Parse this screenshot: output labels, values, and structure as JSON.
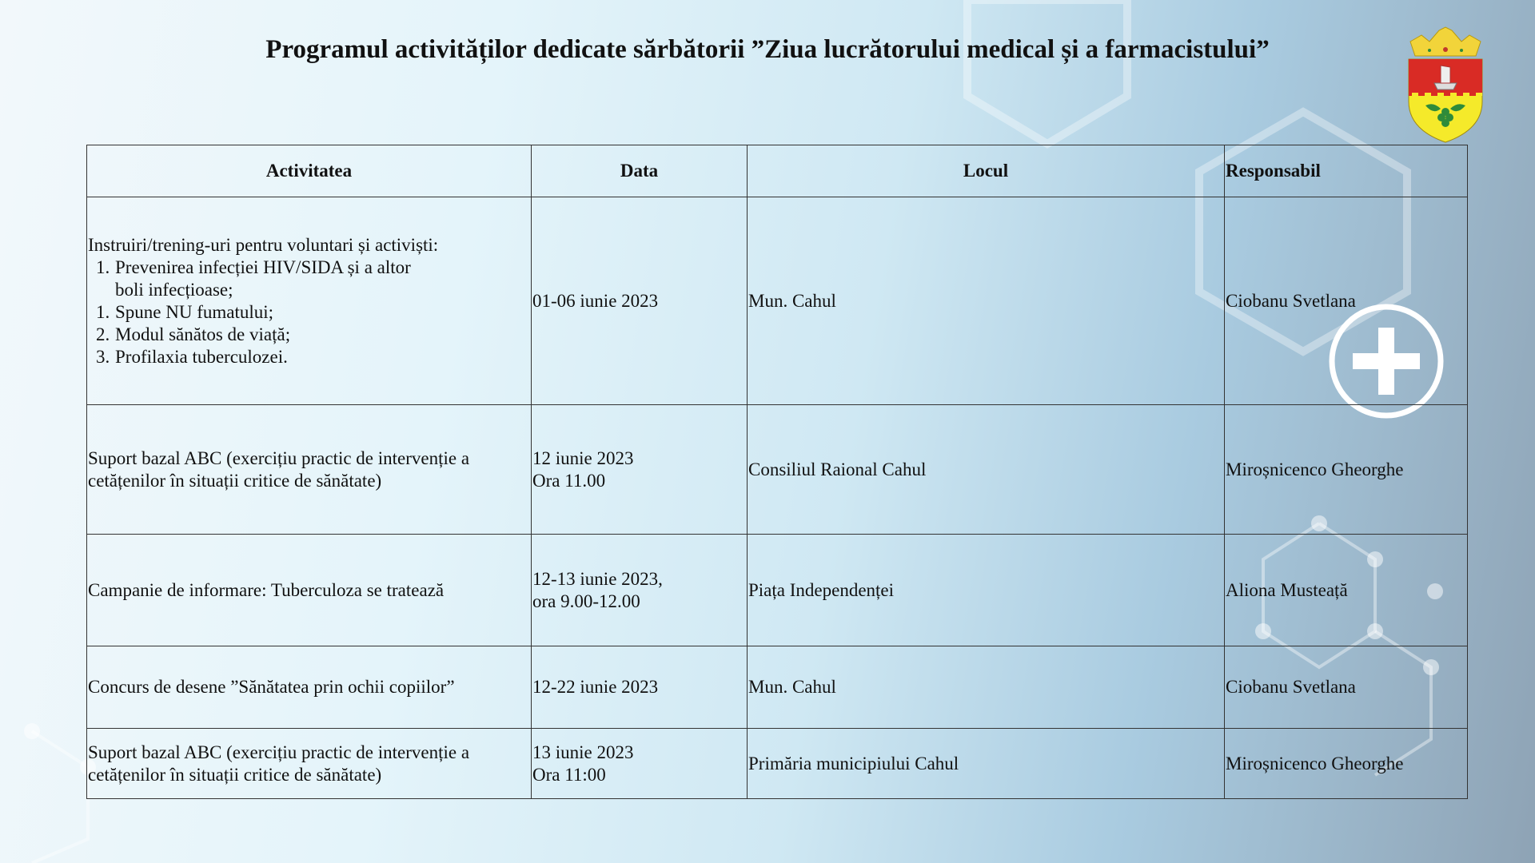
{
  "title": "Programul activităților dedicate sărbătorii ”Ziua lucrătorului medical și a farmacistului”",
  "logo": {
    "icon": "coat-of-arms-cahul",
    "colors": {
      "crown": "#f2d43a",
      "shield_top": "#d92b25",
      "shield_bottom": "#f5ea2a",
      "grapes": "#2e8b3a"
    }
  },
  "decor_icon": "plus-circle-icon",
  "table": {
    "headers": [
      "Activitatea",
      "Data",
      "Locul",
      "Responsabil"
    ],
    "rows": [
      {
        "activity_intro": "Instruiri/trening-uri pentru voluntari și  activiști:",
        "activity_items": [
          [
            "1.",
            "Prevenirea infecției HIV/SIDA și a altor boli infecțioase;"
          ],
          [
            "1.",
            "Spune NU fumatului;"
          ],
          [
            "2.",
            "Modul sănătos de viață;"
          ],
          [
            "3.",
            "Profilaxia tuberculozei."
          ]
        ],
        "date": [
          "01-06 iunie 2023"
        ],
        "place": "Mun. Cahul",
        "responsible": "Ciobanu Svetlana"
      },
      {
        "activity": "Suport bazal ABC (exercițiu practic de  intervenție a cetățenilor în situații critice  de sănătate)",
        "date": [
          "12 iunie 2023",
          "Ora 11.00"
        ],
        "place": "Consiliul Raional Cahul",
        "responsible": "Miroșnicenco  Gheorghe"
      },
      {
        "activity": "Campanie de informare: Tuberculoza se  tratează",
        "date": [
          "12-13 iunie 2023,",
          "ora 9.00-12.00"
        ],
        "place": "Piața Independenței",
        "responsible": "Aliona Musteață"
      },
      {
        "activity": "Concurs de desene ”Sănătatea prin ochii  copiilor”",
        "date": [
          "12-22 iunie 2023"
        ],
        "place": "Mun. Cahul",
        "responsible": "Ciobanu Svetlana"
      },
      {
        "activity": "Suport bazal ABC (exercițiu practic de  intervenție a cetățenilor în situații critice de sănătate)",
        "date": [
          "13 iunie 2023",
          "Ora 11:00"
        ],
        "place": "Primăria municipiului Cahul",
        "responsible": "Miroșnicenco Gheorghe"
      }
    ]
  }
}
